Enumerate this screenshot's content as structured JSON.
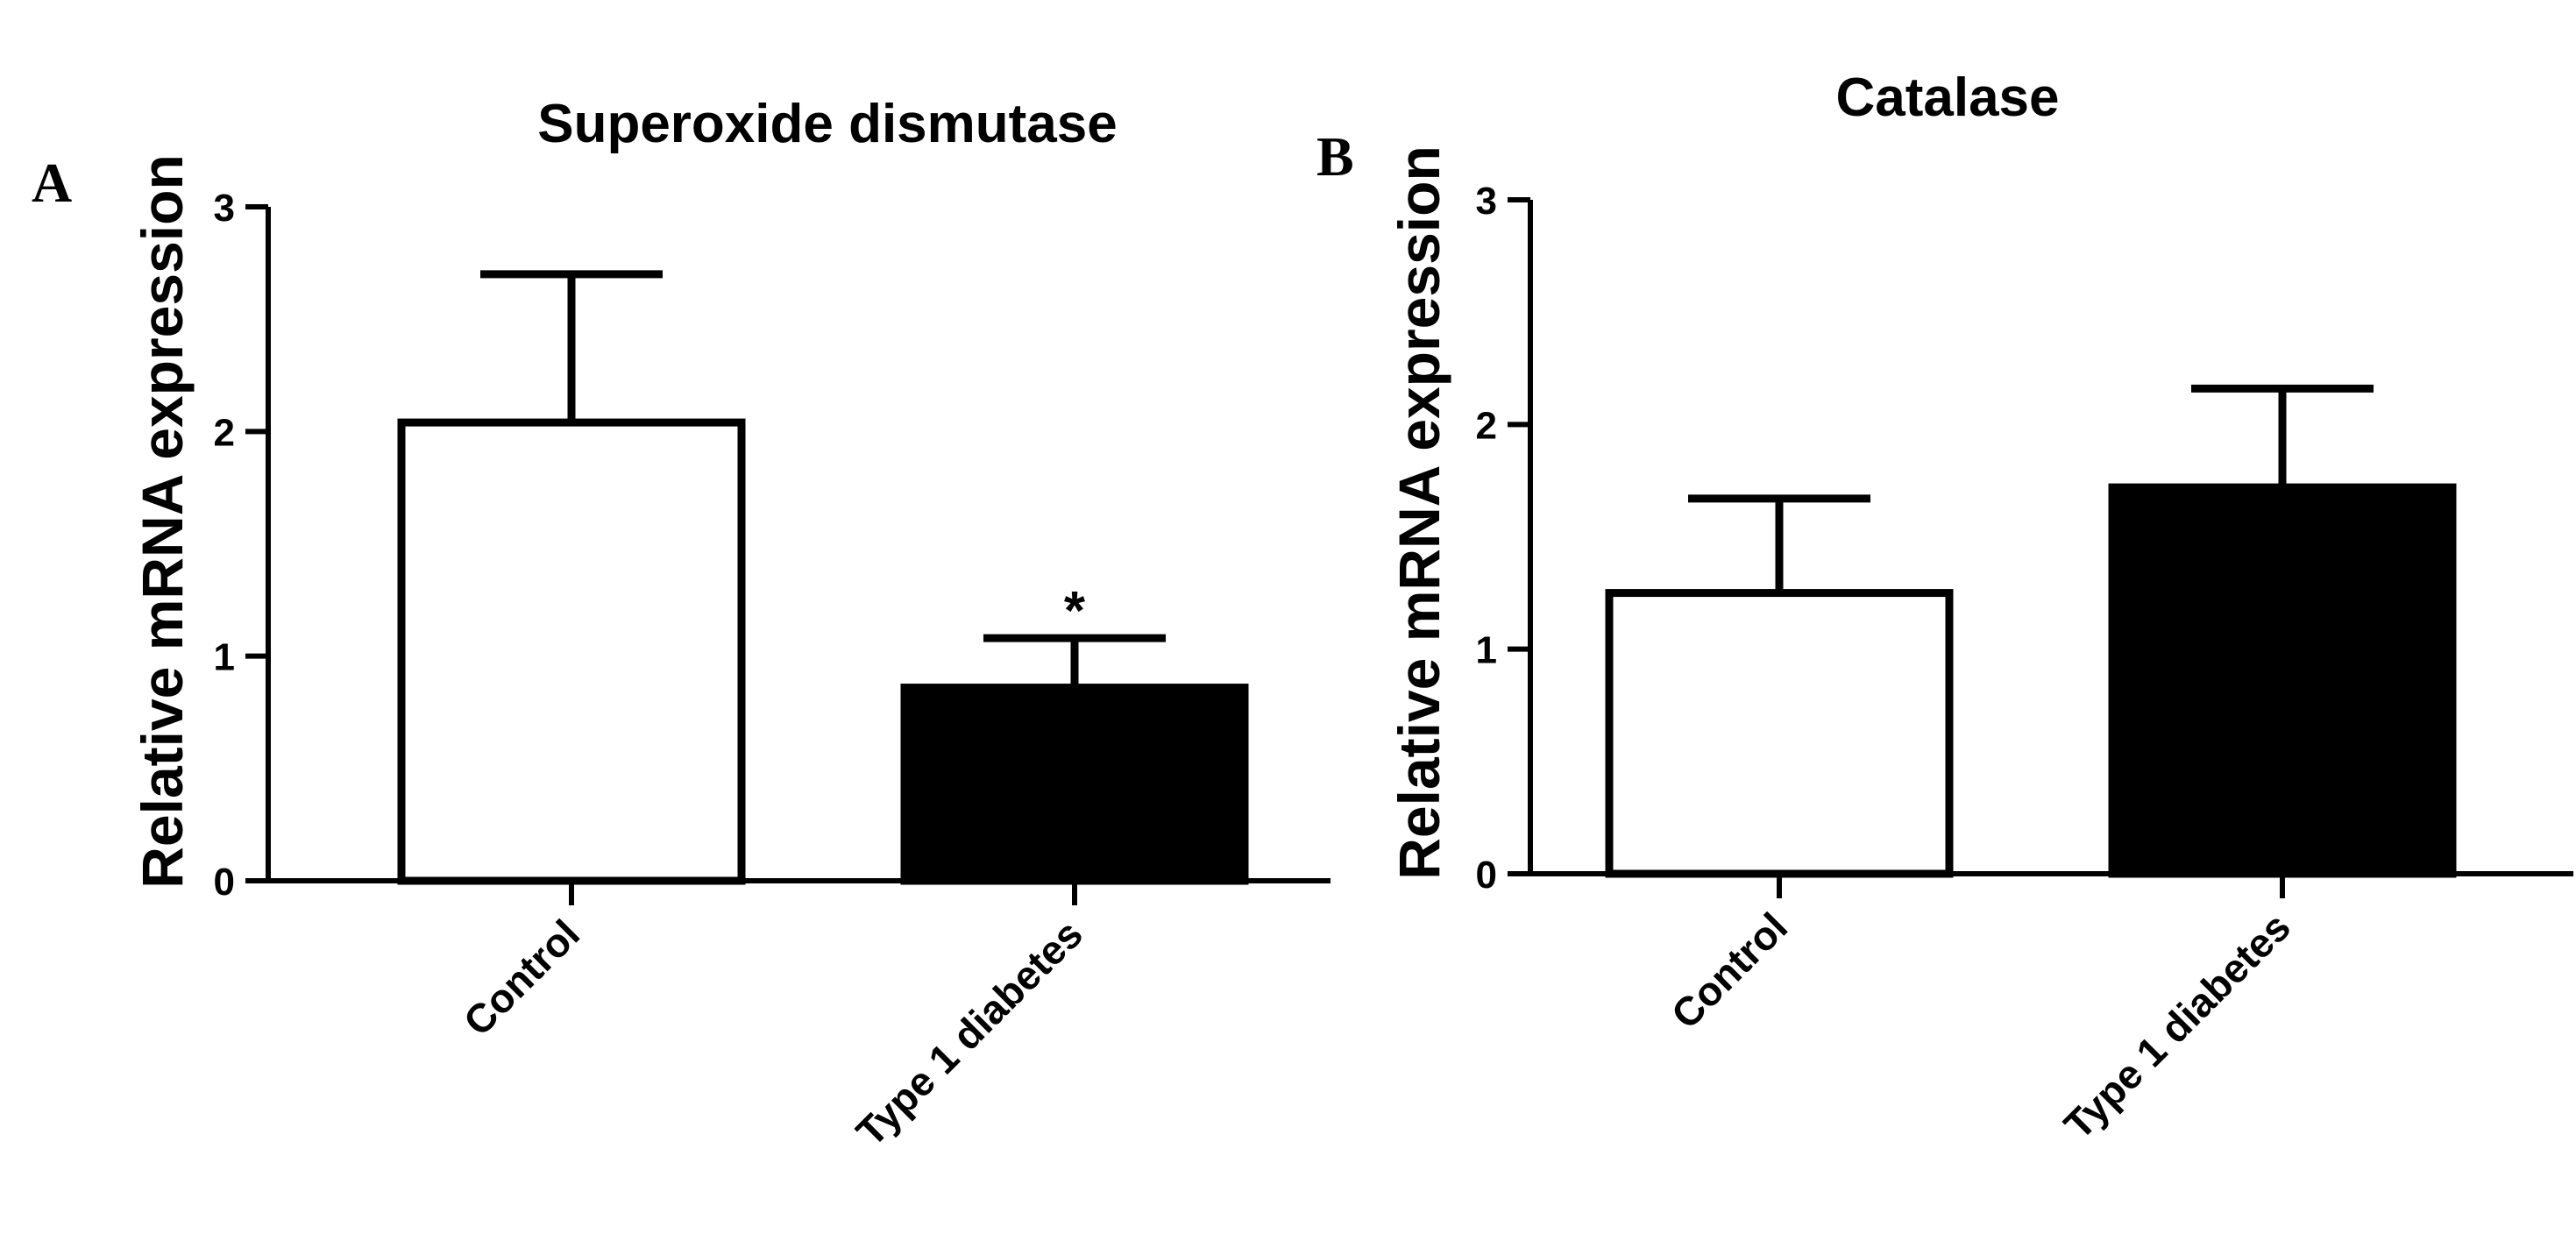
{
  "chart_data": [
    {
      "type": "bar",
      "panel_label": "A",
      "title": "Superoxide dismutase",
      "xlabel": "",
      "ylabel": "Relative mRNA expression",
      "categories": [
        "Control",
        "Type 1 diabetes"
      ],
      "values": [
        2.04,
        0.86
      ],
      "error_bars": [
        0.66,
        0.22
      ],
      "bar_colors": [
        "#ffffff",
        "#000000"
      ],
      "ylim": [
        0,
        3
      ],
      "yticks": [
        "0",
        "1",
        "2",
        "3"
      ],
      "annotations": [
        {
          "category": "Type 1 diabetes",
          "text": "*"
        }
      ],
      "grid": false,
      "legend": "none"
    },
    {
      "type": "bar",
      "panel_label": "B",
      "title": "Catalase",
      "xlabel": "",
      "ylabel": "Relative mRNA expression",
      "categories": [
        "Control",
        "Type 1 diabetes"
      ],
      "values": [
        1.25,
        1.72
      ],
      "error_bars": [
        0.42,
        0.44
      ],
      "bar_colors": [
        "#ffffff",
        "#000000"
      ],
      "ylim": [
        0,
        3
      ],
      "yticks": [
        "0",
        "1",
        "2",
        "3"
      ],
      "annotations": [],
      "grid": false,
      "legend": "none"
    }
  ]
}
